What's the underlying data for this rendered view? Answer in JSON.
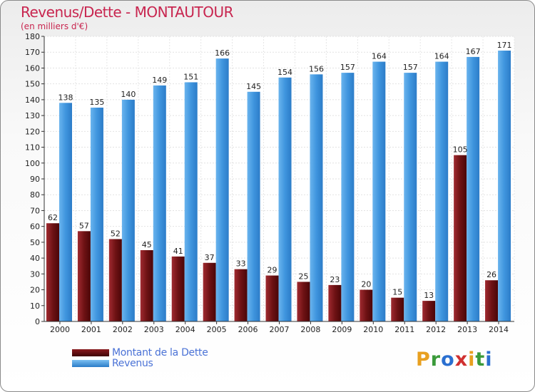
{
  "header": {
    "title": "Revenus/Dette - MONTAUTOUR",
    "subtitle": "(en milliers d'€)"
  },
  "chart_data": {
    "type": "bar",
    "categories": [
      "2000",
      "2001",
      "2002",
      "2003",
      "2004",
      "2005",
      "2006",
      "2007",
      "2008",
      "2009",
      "2010",
      "2011",
      "2012",
      "2013",
      "2014"
    ],
    "series": [
      {
        "name": "Montant de la Dette",
        "color": "#7a1418",
        "values": [
          62,
          57,
          52,
          45,
          41,
          37,
          33,
          29,
          25,
          23,
          20,
          15,
          13,
          105,
          26
        ]
      },
      {
        "name": "Revenus",
        "color": "#3a8fdc",
        "values": [
          138,
          135,
          140,
          149,
          151,
          166,
          145,
          154,
          156,
          157,
          164,
          157,
          164,
          167,
          171
        ]
      }
    ],
    "ylim": [
      0,
      180
    ],
    "ytick_step": 10,
    "grid": true,
    "legend": "bottom-left"
  },
  "legend": {
    "items": [
      "Montant de la Dette",
      "Revenus"
    ]
  },
  "logo": {
    "letters": [
      "P",
      "r",
      "o",
      "x",
      "i",
      "t",
      "i"
    ],
    "colors": [
      "#e8a020",
      "#3a9a3a",
      "#2a6fd0",
      "#d03030",
      "#e8a020",
      "#3a9a3a",
      "#2a6fd0"
    ]
  }
}
